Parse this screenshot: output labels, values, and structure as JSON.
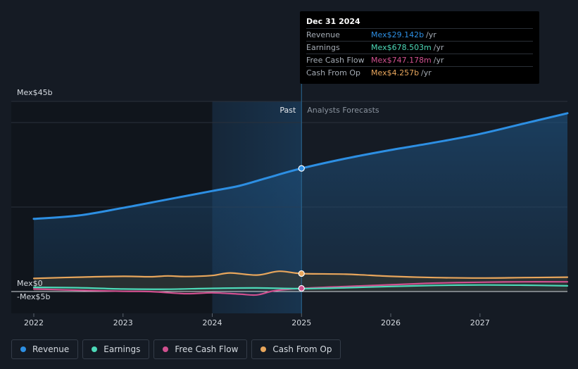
{
  "chart_data": {
    "type": "line",
    "title": "",
    "y_axis": {
      "top_label": "Mex$45b",
      "zero_label": "Mex$0",
      "bottom_label": "-Mex$5b",
      "ylim": [
        -5,
        45
      ]
    },
    "x_axis": {
      "ticks": [
        "2022",
        "2023",
        "2024",
        "2025",
        "2026",
        "2027"
      ],
      "xlim": [
        2022.0,
        2027.98
      ]
    },
    "region_labels": {
      "past": "Past",
      "forecast": "Analysts Forecasts"
    },
    "divider_x": 2025.0,
    "highlight_start_x": 2024.0,
    "series": [
      {
        "name": "Revenue",
        "color": "#2d8fe3",
        "filled": true,
        "points": [
          [
            2022.0,
            17.2
          ],
          [
            2022.5,
            18.0
          ],
          [
            2023.0,
            19.8
          ],
          [
            2023.5,
            21.8
          ],
          [
            2024.0,
            23.8
          ],
          [
            2024.3,
            25.0
          ],
          [
            2024.6,
            26.8
          ],
          [
            2025.0,
            29.142
          ],
          [
            2025.5,
            31.5
          ],
          [
            2026.0,
            33.5
          ],
          [
            2026.5,
            35.3
          ],
          [
            2027.0,
            37.3
          ],
          [
            2027.5,
            39.8
          ],
          [
            2027.98,
            42.2
          ]
        ]
      },
      {
        "name": "Earnings",
        "color": "#4dd9b8",
        "filled": false,
        "points": [
          [
            2022.0,
            1.0
          ],
          [
            2022.5,
            0.9
          ],
          [
            2023.0,
            0.6
          ],
          [
            2023.5,
            0.55
          ],
          [
            2024.0,
            0.75
          ],
          [
            2024.5,
            0.85
          ],
          [
            2025.0,
            0.6785
          ],
          [
            2025.5,
            0.9
          ],
          [
            2026.0,
            1.2
          ],
          [
            2026.5,
            1.45
          ],
          [
            2027.0,
            1.55
          ],
          [
            2027.5,
            1.5
          ],
          [
            2027.98,
            1.35
          ]
        ]
      },
      {
        "name": "Free Cash Flow",
        "color": "#d0508f",
        "filled": false,
        "points": [
          [
            2022.0,
            0.6
          ],
          [
            2022.5,
            0.3
          ],
          [
            2023.0,
            0.05
          ],
          [
            2023.3,
            0.0
          ],
          [
            2023.7,
            -0.5
          ],
          [
            2024.0,
            -0.3
          ],
          [
            2024.3,
            -0.6
          ],
          [
            2024.5,
            -0.8
          ],
          [
            2024.7,
            0.2
          ],
          [
            2025.0,
            0.747
          ],
          [
            2025.5,
            1.2
          ],
          [
            2026.0,
            1.6
          ],
          [
            2026.5,
            2.0
          ],
          [
            2027.0,
            2.2
          ],
          [
            2027.5,
            2.3
          ],
          [
            2027.98,
            2.3
          ]
        ]
      },
      {
        "name": "Cash From Op",
        "color": "#e8a65c",
        "filled": false,
        "points": [
          [
            2022.0,
            3.1
          ],
          [
            2022.5,
            3.4
          ],
          [
            2023.0,
            3.6
          ],
          [
            2023.3,
            3.5
          ],
          [
            2023.5,
            3.7
          ],
          [
            2023.7,
            3.55
          ],
          [
            2024.0,
            3.8
          ],
          [
            2024.2,
            4.4
          ],
          [
            2024.5,
            3.9
          ],
          [
            2024.75,
            4.8
          ],
          [
            2025.0,
            4.257
          ],
          [
            2025.5,
            4.1
          ],
          [
            2026.0,
            3.6
          ],
          [
            2026.5,
            3.3
          ],
          [
            2027.0,
            3.2
          ],
          [
            2027.5,
            3.3
          ],
          [
            2027.98,
            3.4
          ]
        ]
      }
    ]
  },
  "tooltip": {
    "date": "Dec 31 2024",
    "rows": [
      {
        "label": "Revenue",
        "value": "Mex$29.142b",
        "unit": "/yr",
        "color": "#2d8fe3"
      },
      {
        "label": "Earnings",
        "value": "Mex$678.503m",
        "unit": "/yr",
        "color": "#4dd9b8"
      },
      {
        "label": "Free Cash Flow",
        "value": "Mex$747.178m",
        "unit": "/yr",
        "color": "#d0508f"
      },
      {
        "label": "Cash From Op",
        "value": "Mex$4.257b",
        "unit": "/yr",
        "color": "#e8a65c"
      }
    ]
  },
  "legend": [
    {
      "label": "Revenue",
      "color": "#2d8fe3"
    },
    {
      "label": "Earnings",
      "color": "#4dd9b8"
    },
    {
      "label": "Free Cash Flow",
      "color": "#d0508f"
    },
    {
      "label": "Cash From Op",
      "color": "#e8a65c"
    }
  ]
}
